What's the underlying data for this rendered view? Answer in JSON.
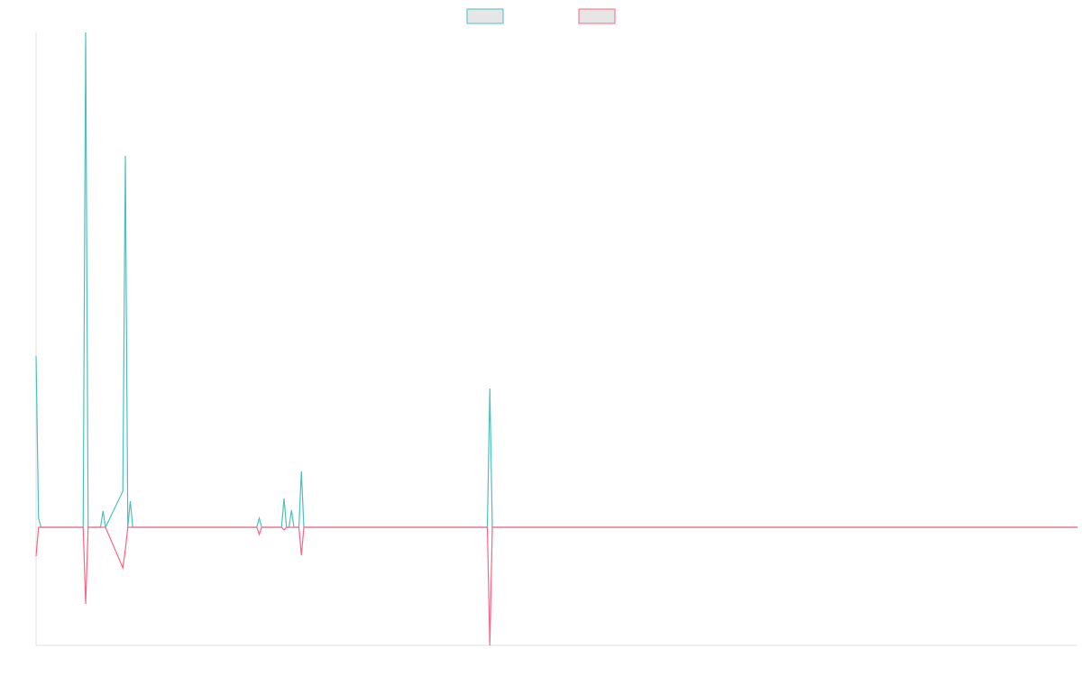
{
  "chart_data": {
    "type": "line",
    "x": [
      0,
      1,
      2,
      19,
      20,
      21,
      26,
      27,
      28,
      35,
      36,
      37,
      38,
      39,
      82,
      83,
      89,
      90,
      91,
      99,
      100,
      101,
      102,
      103,
      104,
      106,
      107,
      108,
      182,
      183,
      184,
      420
    ],
    "xlim": [
      0,
      420
    ],
    "ylim": [
      -131,
      549
    ],
    "series": [
      {
        "color": "#4bc0c0",
        "values": [
          190,
          10,
          0,
          0,
          549,
          0,
          0,
          18,
          0,
          40,
          412,
          0,
          29,
          0,
          0,
          0,
          0,
          10,
          0,
          0,
          32,
          0,
          0,
          19,
          0,
          0,
          62,
          0,
          0,
          154,
          0,
          0
        ]
      },
      {
        "color": "#ff6384",
        "values": [
          -32,
          0,
          0,
          0,
          -85,
          0,
          0,
          0,
          0,
          -45,
          -25,
          0,
          0,
          0,
          0,
          0,
          0,
          -8,
          0,
          0,
          -3,
          0,
          0,
          0,
          0,
          0,
          -31,
          0,
          0,
          -131,
          0,
          0
        ]
      }
    ],
    "legend": "top"
  }
}
